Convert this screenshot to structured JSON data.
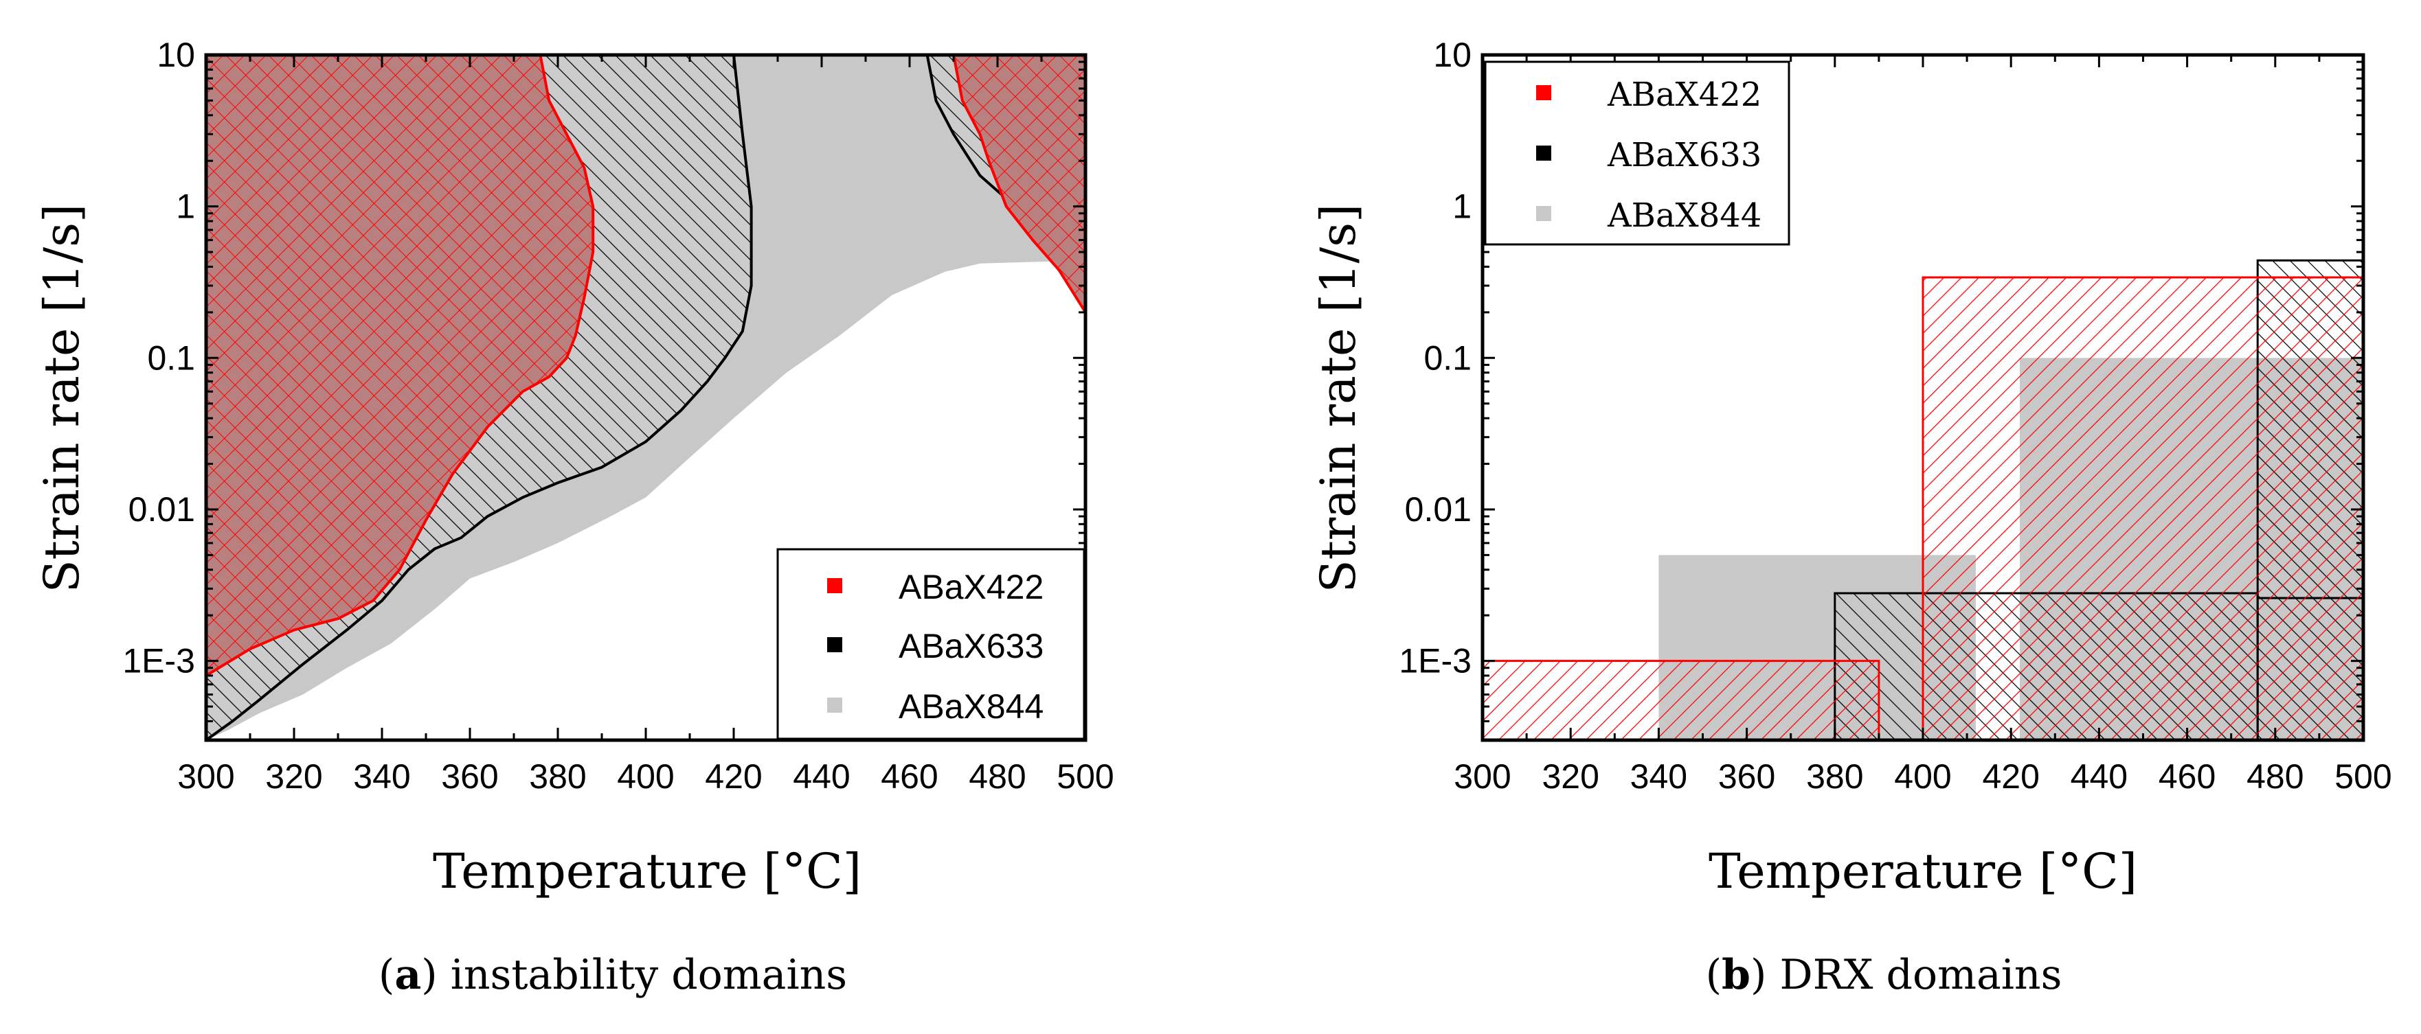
{
  "figure": {
    "caption_a": {
      "open": "(",
      "letter": "a",
      "close": ")",
      "text": " instability domains"
    },
    "caption_b": {
      "open": "(",
      "letter": "b",
      "close": ")",
      "text": " DRX domains"
    }
  },
  "colors": {
    "ABaX422": "#ff0000",
    "ABaX633": "#000000",
    "ABaX844": "#c8c8c8"
  },
  "chart_data": [
    {
      "type": "area",
      "title": "instability domains",
      "xlabel": "Temperature [°C]",
      "ylabel": "Strain rate [1/s]",
      "xlim": [
        300,
        500
      ],
      "ylim": [
        0.0003,
        10
      ],
      "yscale": "log",
      "xticks": [
        "300",
        "320",
        "340",
        "360",
        "380",
        "400",
        "420",
        "440",
        "460",
        "480",
        "500"
      ],
      "yticks": [
        {
          "value": 10,
          "label": "10"
        },
        {
          "value": 1,
          "label": "1"
        },
        {
          "value": 0.1,
          "label": "0.1"
        },
        {
          "value": 0.01,
          "label": "0.01"
        },
        {
          "value": 0.001,
          "label": "1E-3"
        }
      ],
      "legend": {
        "position": "bottom-right",
        "entries": [
          "ABaX422",
          "ABaX633",
          "ABaX844"
        ]
      },
      "series": [
        {
          "name": "ABaX844",
          "fill": "solid",
          "regions": [
            [
              [
                300,
                0.0003
              ],
              [
                300,
                10
              ],
              [
                464,
                10
              ],
              [
                470,
                5
              ],
              [
                478,
                2
              ],
              [
                486,
                1.1
              ],
              [
                494,
                0.7
              ],
              [
                500,
                0.55
              ],
              [
                500,
                0.44
              ],
              [
                488,
                0.43
              ],
              [
                476,
                0.42
              ],
              [
                468,
                0.37
              ],
              [
                456,
                0.26
              ],
              [
                444,
                0.14
              ],
              [
                432,
                0.08
              ],
              [
                420,
                0.04
              ],
              [
                410,
                0.022
              ],
              [
                400,
                0.012
              ],
              [
                392,
                0.009
              ],
              [
                380,
                0.006
              ],
              [
                370,
                0.0045
              ],
              [
                360,
                0.0035
              ],
              [
                352,
                0.0022
              ],
              [
                342,
                0.0013
              ],
              [
                332,
                0.0009
              ],
              [
                322,
                0.0006
              ],
              [
                312,
                0.00045
              ],
              [
                305,
                0.00035
              ],
              [
                300,
                0.0003
              ]
            ]
          ]
        },
        {
          "name": "ABaX633",
          "fill": "diagonal-hatch",
          "regions": [
            [
              [
                300,
                0.0003
              ],
              [
                300,
                10
              ],
              [
                420,
                10
              ],
              [
                422,
                3
              ],
              [
                424,
                1
              ],
              [
                424,
                0.3
              ],
              [
                422,
                0.15
              ],
              [
                418,
                0.1
              ],
              [
                414,
                0.07
              ],
              [
                408,
                0.045
              ],
              [
                400,
                0.028
              ],
              [
                390,
                0.019
              ],
              [
                380,
                0.015
              ],
              [
                372,
                0.012
              ],
              [
                364,
                0.009
              ],
              [
                358,
                0.0065
              ],
              [
                352,
                0.0055
              ],
              [
                346,
                0.004
              ],
              [
                340,
                0.0025
              ],
              [
                332,
                0.0016
              ],
              [
                322,
                0.00095
              ],
              [
                312,
                0.00055
              ],
              [
                306,
                0.0004
              ],
              [
                300,
                0.0003
              ]
            ],
            [
              [
                464,
                10
              ],
              [
                466,
                5
              ],
              [
                470,
                3
              ],
              [
                476,
                1.6
              ],
              [
                484,
                1
              ],
              [
                492,
                0.72
              ],
              [
                500,
                0.42
              ],
              [
                500,
                10
              ]
            ]
          ]
        },
        {
          "name": "ABaX422",
          "fill": "cross-hatch",
          "regions": [
            [
              [
                300,
                0.0008
              ],
              [
                300,
                10
              ],
              [
                376,
                10
              ],
              [
                378,
                5
              ],
              [
                382,
                3
              ],
              [
                386,
                1.8
              ],
              [
                388,
                1
              ],
              [
                388,
                0.5
              ],
              [
                386,
                0.25
              ],
              [
                384,
                0.14
              ],
              [
                382,
                0.1
              ],
              [
                378,
                0.075
              ],
              [
                372,
                0.06
              ],
              [
                364,
                0.035
              ],
              [
                356,
                0.017
              ],
              [
                350,
                0.0085
              ],
              [
                344,
                0.004
              ],
              [
                338,
                0.0025
              ],
              [
                330,
                0.0019
              ],
              [
                320,
                0.0016
              ],
              [
                310,
                0.0012
              ],
              [
                300,
                0.0008
              ]
            ],
            [
              [
                470,
                10
              ],
              [
                472,
                5
              ],
              [
                476,
                3
              ],
              [
                478,
                2
              ],
              [
                482,
                1
              ],
              [
                488,
                0.6
              ],
              [
                494,
                0.38
              ],
              [
                500,
                0.2
              ],
              [
                500,
                10
              ]
            ]
          ]
        }
      ]
    },
    {
      "type": "area",
      "title": "DRX domains",
      "xlabel": "Temperature [°C]",
      "ylabel": "Strain rate [1/s]",
      "xlim": [
        300,
        500
      ],
      "ylim": [
        0.0003,
        10
      ],
      "yscale": "log",
      "xticks": [
        "300",
        "320",
        "340",
        "360",
        "380",
        "400",
        "420",
        "440",
        "460",
        "480",
        "500"
      ],
      "yticks": [
        {
          "value": 10,
          "label": "10"
        },
        {
          "value": 1,
          "label": "1"
        },
        {
          "value": 0.1,
          "label": "0.1"
        },
        {
          "value": 0.01,
          "label": "0.01"
        },
        {
          "value": 0.001,
          "label": "1E-3"
        }
      ],
      "legend": {
        "position": "top-left",
        "entries": [
          "ABaX422",
          "ABaX633",
          "ABaX844"
        ]
      },
      "series": [
        {
          "name": "ABaX844",
          "fill": "solid",
          "rects": [
            {
              "x": [
                340,
                412
              ],
              "y": [
                0.0003,
                0.005
              ]
            },
            {
              "x": [
                422,
                500
              ],
              "y": [
                0.0003,
                0.1
              ]
            }
          ]
        },
        {
          "name": "ABaX633",
          "fill": "diagonal-hatch",
          "rects": [
            {
              "x": [
                380,
                476
              ],
              "y": [
                0.0003,
                0.0028
              ]
            },
            {
              "x": [
                476,
                500
              ],
              "y": [
                0.0003,
                0.0026
              ]
            },
            {
              "x": [
                476,
                500
              ],
              "y": [
                0.0026,
                0.44
              ]
            }
          ]
        },
        {
          "name": "ABaX422",
          "fill": "back-hatch",
          "rects": [
            {
              "x": [
                300,
                390
              ],
              "y": [
                0.0003,
                0.001
              ]
            },
            {
              "x": [
                400,
                500
              ],
              "y": [
                0.0003,
                0.34
              ]
            }
          ]
        }
      ]
    }
  ]
}
